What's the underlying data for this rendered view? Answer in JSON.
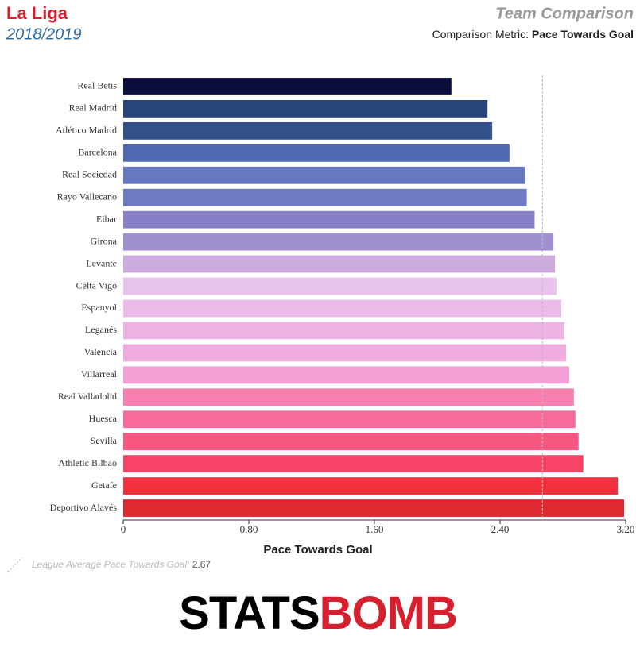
{
  "chart_data": {
    "type": "hbar",
    "title": "La Liga",
    "subtitle": "2018/2019",
    "comparison_title": "Team Comparison",
    "metric_label": "Comparison Metric:",
    "metric": "Pace Towards Goal",
    "xlabel": "Pace Towards Goal",
    "categories": [
      "Real Betis",
      "Real Madrid",
      "Atlético Madrid",
      "Barcelona",
      "Real Sociedad",
      "Rayo Vallecano",
      "Eibar",
      "Girona",
      "Levante",
      "Celta Vigo",
      "Espanyol",
      "Leganés",
      "Valencia",
      "Villarreal",
      "Real Valladolid",
      "Huesca",
      "Sevilla",
      "Athletic Bilbao",
      "Getafe",
      "Deportivo Alavés"
    ],
    "values": [
      2.09,
      2.32,
      2.35,
      2.46,
      2.56,
      2.57,
      2.62,
      2.74,
      2.75,
      2.76,
      2.79,
      2.81,
      2.82,
      2.84,
      2.87,
      2.88,
      2.9,
      2.93,
      3.15,
      3.19
    ],
    "colors": [
      "#0c0c3d",
      "#2a457a",
      "#33528c",
      "#5068b0",
      "#6878c0",
      "#6f7ac4",
      "#8680c8",
      "#a090d0",
      "#ccacdf",
      "#e8c4ec",
      "#edbbea",
      "#efb4e6",
      "#f0acdf",
      "#f59fd6",
      "#f77fb0",
      "#f86a9c",
      "#f85880",
      "#f74466",
      "#f2313f",
      "#dc2a2e"
    ],
    "xlim": [
      0,
      3.2
    ],
    "xticks": [
      0,
      {
        "value": 0.8,
        "label": "0.80"
      },
      {
        "value": 1.6,
        "label": "1.60"
      },
      {
        "value": 2.4,
        "label": "2.40"
      },
      {
        "value": 3.2,
        "label": "3.20"
      }
    ],
    "reference_line": {
      "label": "League Average Pace Towards Goal:",
      "value": 2.67
    },
    "logo": [
      "STATS",
      "BOMB"
    ]
  }
}
